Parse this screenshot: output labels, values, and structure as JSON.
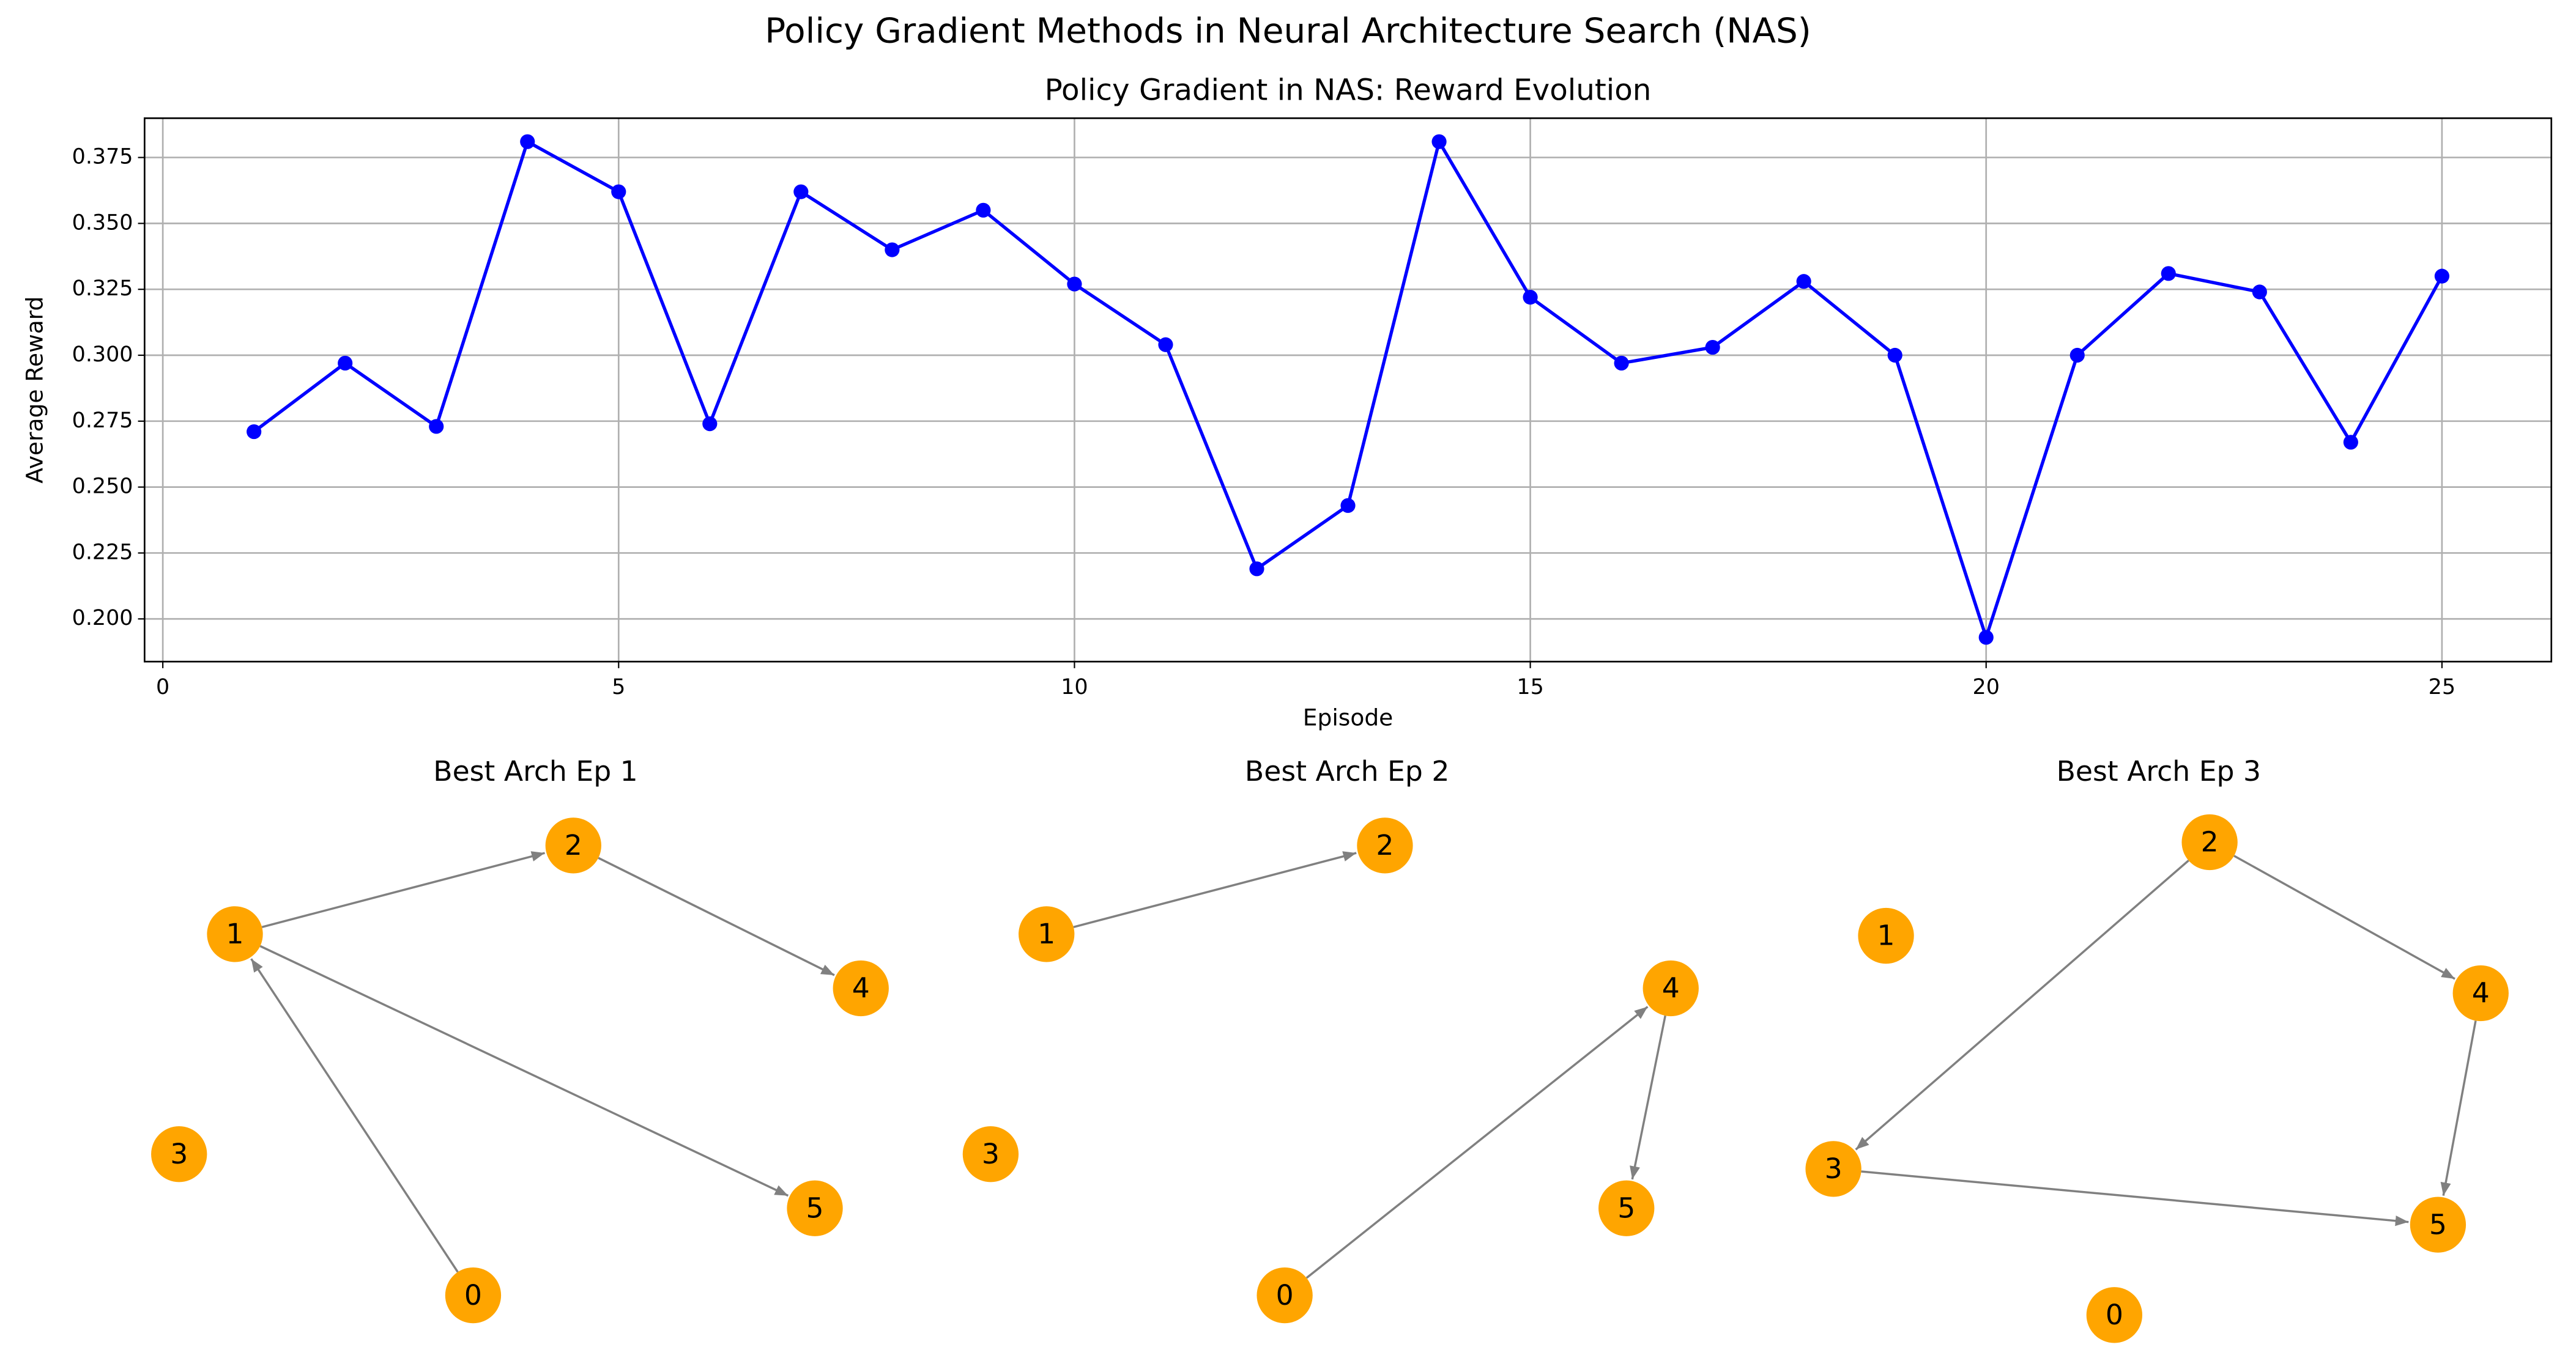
{
  "title": "Policy Gradient Methods in Neural Architecture Search (NAS)",
  "chart_data": [
    {
      "type": "line",
      "title": "Policy Gradient in NAS: Reward Evolution",
      "x_label": "Episode",
      "y_label": "Average Reward",
      "x": [
        1,
        2,
        3,
        4,
        5,
        6,
        7,
        8,
        9,
        10,
        11,
        12,
        13,
        14,
        15,
        16,
        17,
        18,
        19,
        20,
        21,
        22,
        23,
        24,
        25
      ],
      "values": [
        0.271,
        0.297,
        0.273,
        0.381,
        0.362,
        0.274,
        0.362,
        0.34,
        0.355,
        0.327,
        0.304,
        0.219,
        0.243,
        0.381,
        0.322,
        0.297,
        0.303,
        0.328,
        0.3,
        0.193,
        0.3,
        0.331,
        0.324,
        0.267,
        0.33
      ],
      "color": "#0000ff",
      "grid": true,
      "xlim": [
        -0.2,
        26.2
      ],
      "xticks": [
        0,
        5,
        10,
        15,
        20,
        25
      ],
      "ylim": [
        0.1838,
        0.3899
      ],
      "yticks": [
        {
          "value": 0.2,
          "label": "0.200"
        },
        {
          "value": 0.225,
          "label": "0.225"
        },
        {
          "value": 0.25,
          "label": "0.250"
        },
        {
          "value": 0.275,
          "label": "0.275"
        },
        {
          "value": 0.3,
          "label": "0.300"
        },
        {
          "value": 0.325,
          "label": "0.325"
        },
        {
          "value": 0.35,
          "label": "0.350"
        },
        {
          "value": 0.375,
          "label": "0.375"
        }
      ]
    },
    {
      "type": "graph",
      "title": "Best Arch Ep 1",
      "color": "#ffa500",
      "nodes": [
        0,
        1,
        2,
        3,
        4,
        5
      ],
      "edges": [
        [
          1,
          2
        ],
        [
          2,
          4
        ],
        [
          1,
          5
        ],
        [
          0,
          1
        ]
      ]
    },
    {
      "type": "graph",
      "title": "Best Arch Ep 2",
      "color": "#ffa500",
      "nodes": [
        0,
        1,
        2,
        3,
        4,
        5
      ],
      "edges": [
        [
          1,
          2
        ],
        [
          0,
          4
        ],
        [
          4,
          5
        ]
      ]
    },
    {
      "type": "graph",
      "title": "Best Arch Ep 3",
      "color": "#ffa500",
      "nodes": [
        0,
        1,
        2,
        3,
        4,
        5
      ],
      "edges": [
        [
          2,
          4
        ],
        [
          2,
          3
        ],
        [
          4,
          5
        ],
        [
          3,
          5
        ]
      ]
    }
  ]
}
